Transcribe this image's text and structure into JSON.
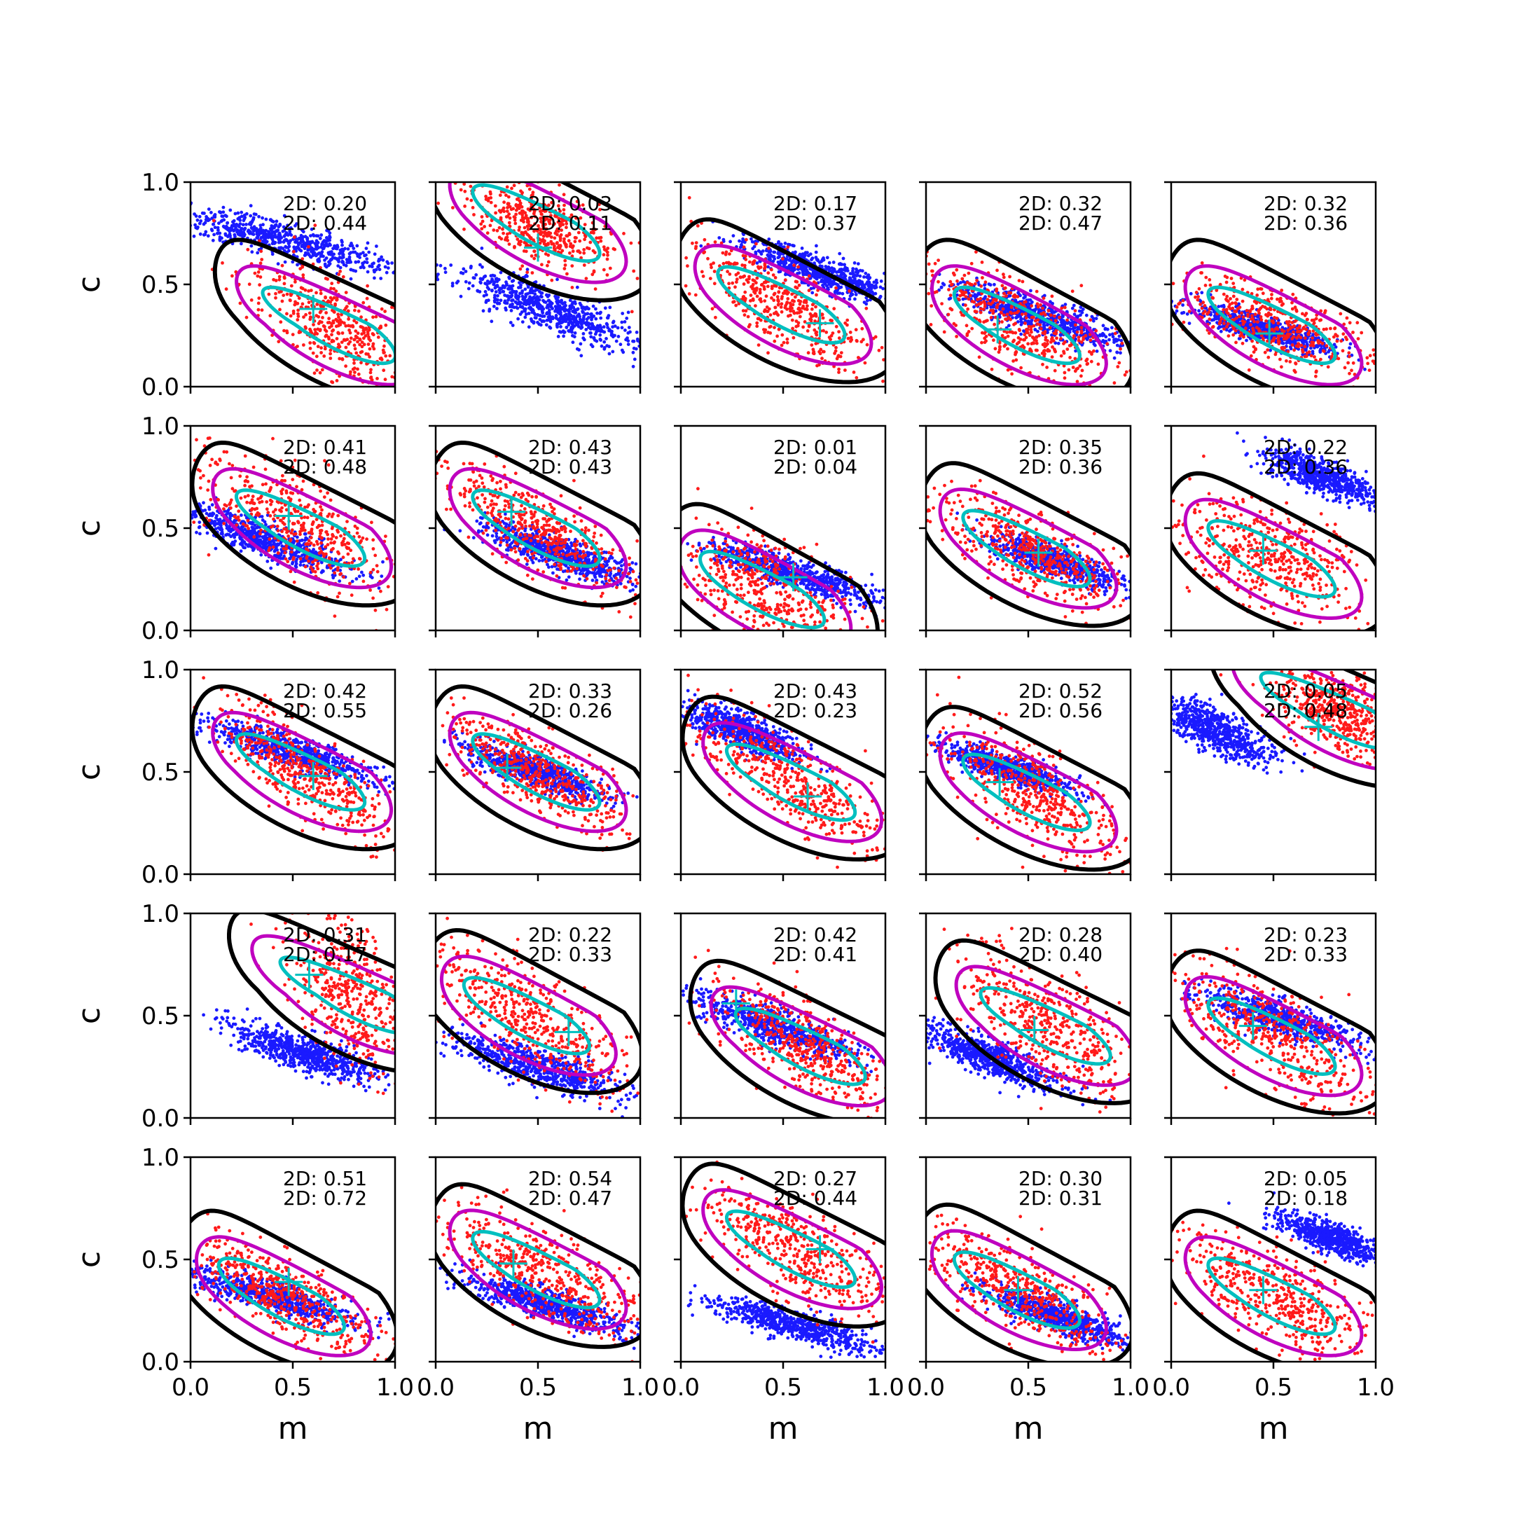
{
  "chart_data": {
    "type": "scatter",
    "rows": 5,
    "cols": 5,
    "xlabel": "m",
    "ylabel": "c",
    "xlim": [
      0,
      1
    ],
    "ylim": [
      0,
      1
    ],
    "xticks": [
      "0.0",
      "0.5",
      "1.0"
    ],
    "yticks": [
      "0.0",
      "0.5",
      "1.0"
    ],
    "colors": {
      "blue": "#1a1aff",
      "red": "#ff1a1a",
      "black": "#000000",
      "magenta": "#bf00bf",
      "cyan": "#00bfbf"
    },
    "panels": [
      {
        "stats": [
          "2D: 0.20",
          "2D: 0.44"
        ],
        "marker": [
          0.6,
          0.38
        ],
        "blue": {
          "cx": 0.45,
          "cy": 0.72,
          "sx": 0.28,
          "sy": 0.08,
          "rho": -0.85
        },
        "red": {
          "cx": 0.7,
          "cy": 0.3,
          "sx": 0.2,
          "sy": 0.15,
          "rho": -0.6
        }
      },
      {
        "stats": [
          "2D: 0.03",
          "2D: 0.11"
        ],
        "marker": [
          0.5,
          0.68
        ],
        "blue": {
          "cx": 0.55,
          "cy": 0.38,
          "sx": 0.22,
          "sy": 0.1,
          "rho": -0.85
        },
        "red": {
          "cx": 0.5,
          "cy": 0.8,
          "sx": 0.18,
          "sy": 0.12,
          "rho": -0.6
        }
      },
      {
        "stats": [
          "2D: 0.17",
          "2D: 0.37"
        ],
        "marker": [
          0.68,
          0.31
        ],
        "blue": {
          "cx": 0.7,
          "cy": 0.55,
          "sx": 0.2,
          "sy": 0.08,
          "rho": -0.85
        },
        "red": {
          "cx": 0.5,
          "cy": 0.4,
          "sx": 0.22,
          "sy": 0.16,
          "rho": -0.75
        }
      },
      {
        "stats": [
          "2D: 0.32",
          "2D: 0.47"
        ],
        "marker": [
          0.35,
          0.28
        ],
        "blue": {
          "cx": 0.55,
          "cy": 0.35,
          "sx": 0.22,
          "sy": 0.08,
          "rho": -0.85
        },
        "red": {
          "cx": 0.45,
          "cy": 0.3,
          "sx": 0.25,
          "sy": 0.15,
          "rho": -0.7
        }
      },
      {
        "stats": [
          "2D: 0.32",
          "2D: 0.36"
        ],
        "marker": [
          0.48,
          0.26
        ],
        "blue": {
          "cx": 0.45,
          "cy": 0.28,
          "sx": 0.18,
          "sy": 0.06,
          "rho": -0.85
        },
        "red": {
          "cx": 0.5,
          "cy": 0.3,
          "sx": 0.25,
          "sy": 0.12,
          "rho": -0.7
        }
      },
      {
        "stats": [
          "2D: 0.41",
          "2D: 0.48"
        ],
        "marker": [
          0.48,
          0.56
        ],
        "blue": {
          "cx": 0.35,
          "cy": 0.45,
          "sx": 0.2,
          "sy": 0.08,
          "rho": -0.85
        },
        "red": {
          "cx": 0.55,
          "cy": 0.5,
          "sx": 0.25,
          "sy": 0.18,
          "rho": -0.75
        }
      },
      {
        "stats": [
          "2D: 0.43",
          "2D: 0.43"
        ],
        "marker": [
          0.37,
          0.58
        ],
        "blue": {
          "cx": 0.6,
          "cy": 0.38,
          "sx": 0.2,
          "sy": 0.08,
          "rho": -0.85
        },
        "red": {
          "cx": 0.5,
          "cy": 0.5,
          "sx": 0.25,
          "sy": 0.18,
          "rho": -0.8
        }
      },
      {
        "stats": [
          "2D: 0.01",
          "2D: 0.04"
        ],
        "marker": [
          0.55,
          0.26
        ],
        "blue": {
          "cx": 0.55,
          "cy": 0.28,
          "sx": 0.2,
          "sy": 0.07,
          "rho": -0.85
        },
        "red": {
          "cx": 0.4,
          "cy": 0.2,
          "sx": 0.2,
          "sy": 0.15,
          "rho": -0.5
        }
      },
      {
        "stats": [
          "2D: 0.35",
          "2D: 0.36"
        ],
        "marker": [
          0.55,
          0.38
        ],
        "blue": {
          "cx": 0.65,
          "cy": 0.33,
          "sx": 0.18,
          "sy": 0.07,
          "rho": -0.85
        },
        "red": {
          "cx": 0.5,
          "cy": 0.4,
          "sx": 0.25,
          "sy": 0.15,
          "rho": -0.75
        }
      },
      {
        "stats": [
          "2D: 0.22",
          "2D: 0.36"
        ],
        "marker": [
          0.45,
          0.39
        ],
        "blue": {
          "cx": 0.75,
          "cy": 0.75,
          "sx": 0.15,
          "sy": 0.07,
          "rho": -0.8
        },
        "red": {
          "cx": 0.5,
          "cy": 0.35,
          "sx": 0.25,
          "sy": 0.15,
          "rho": -0.5
        }
      },
      {
        "stats": [
          "2D: 0.42",
          "2D: 0.55"
        ],
        "marker": [
          0.6,
          0.48
        ],
        "blue": {
          "cx": 0.5,
          "cy": 0.6,
          "sx": 0.2,
          "sy": 0.07,
          "rho": -0.85
        },
        "red": {
          "cx": 0.55,
          "cy": 0.5,
          "sx": 0.22,
          "sy": 0.16,
          "rho": -0.8
        }
      },
      {
        "stats": [
          "2D: 0.33",
          "2D: 0.26"
        ],
        "marker": [
          0.35,
          0.52
        ],
        "blue": {
          "cx": 0.5,
          "cy": 0.5,
          "sx": 0.18,
          "sy": 0.07,
          "rho": -0.85
        },
        "red": {
          "cx": 0.5,
          "cy": 0.5,
          "sx": 0.22,
          "sy": 0.14,
          "rho": -0.75
        }
      },
      {
        "stats": [
          "2D: 0.43",
          "2D: 0.23"
        ],
        "marker": [
          0.62,
          0.38
        ],
        "blue": {
          "cx": 0.3,
          "cy": 0.7,
          "sx": 0.14,
          "sy": 0.07,
          "rho": -0.8
        },
        "red": {
          "cx": 0.55,
          "cy": 0.45,
          "sx": 0.25,
          "sy": 0.18,
          "rho": -0.8
        }
      },
      {
        "stats": [
          "2D: 0.52",
          "2D: 0.56"
        ],
        "marker": [
          0.36,
          0.45
        ],
        "blue": {
          "cx": 0.4,
          "cy": 0.52,
          "sx": 0.16,
          "sy": 0.06,
          "rho": -0.85
        },
        "red": {
          "cx": 0.5,
          "cy": 0.4,
          "sx": 0.25,
          "sy": 0.18,
          "rho": -0.75
        }
      },
      {
        "stats": [
          "2D: 0.05",
          "2D: 0.48"
        ],
        "marker": [
          0.72,
          0.72
        ],
        "blue": {
          "cx": 0.22,
          "cy": 0.7,
          "sx": 0.14,
          "sy": 0.08,
          "rho": -0.75
        },
        "red": {
          "cx": 0.8,
          "cy": 0.8,
          "sx": 0.15,
          "sy": 0.12,
          "rho": -0.5
        }
      },
      {
        "stats": [
          "2D: 0.31",
          "2D: 0.17"
        ],
        "marker": [
          0.58,
          0.7
        ],
        "blue": {
          "cx": 0.55,
          "cy": 0.32,
          "sx": 0.18,
          "sy": 0.07,
          "rho": -0.8
        },
        "red": {
          "cx": 0.8,
          "cy": 0.6,
          "sx": 0.15,
          "sy": 0.2,
          "rho": -0.4
        }
      },
      {
        "stats": [
          "2D: 0.22",
          "2D: 0.33"
        ],
        "marker": [
          0.65,
          0.42
        ],
        "blue": {
          "cx": 0.5,
          "cy": 0.25,
          "sx": 0.22,
          "sy": 0.08,
          "rho": -0.85
        },
        "red": {
          "cx": 0.45,
          "cy": 0.5,
          "sx": 0.25,
          "sy": 0.18,
          "rho": -0.75
        }
      },
      {
        "stats": [
          "2D: 0.42",
          "2D: 0.41"
        ],
        "marker": [
          0.27,
          0.56
        ],
        "blue": {
          "cx": 0.45,
          "cy": 0.45,
          "sx": 0.2,
          "sy": 0.08,
          "rho": -0.85
        },
        "red": {
          "cx": 0.6,
          "cy": 0.35,
          "sx": 0.22,
          "sy": 0.16,
          "rho": -0.75
        }
      },
      {
        "stats": [
          "2D: 0.28",
          "2D: 0.40"
        ],
        "marker": [
          0.53,
          0.43
        ],
        "blue": {
          "cx": 0.3,
          "cy": 0.3,
          "sx": 0.18,
          "sy": 0.08,
          "rho": -0.85
        },
        "red": {
          "cx": 0.6,
          "cy": 0.45,
          "sx": 0.22,
          "sy": 0.18,
          "rho": -0.7
        }
      },
      {
        "stats": [
          "2D: 0.23",
          "2D: 0.33"
        ],
        "marker": [
          0.4,
          0.45
        ],
        "blue": {
          "cx": 0.55,
          "cy": 0.48,
          "sx": 0.2,
          "sy": 0.07,
          "rho": -0.85
        },
        "red": {
          "cx": 0.5,
          "cy": 0.4,
          "sx": 0.25,
          "sy": 0.18,
          "rho": -0.75
        }
      },
      {
        "stats": [
          "2D: 0.51",
          "2D: 0.72"
        ],
        "marker": [
          0.48,
          0.39
        ],
        "blue": {
          "cx": 0.4,
          "cy": 0.32,
          "sx": 0.2,
          "sy": 0.07,
          "rho": -0.85
        },
        "red": {
          "cx": 0.45,
          "cy": 0.32,
          "sx": 0.22,
          "sy": 0.14,
          "rho": -0.75
        }
      },
      {
        "stats": [
          "2D: 0.54",
          "2D: 0.47"
        ],
        "marker": [
          0.38,
          0.48
        ],
        "blue": {
          "cx": 0.55,
          "cy": 0.28,
          "sx": 0.2,
          "sy": 0.07,
          "rho": -0.85
        },
        "red": {
          "cx": 0.5,
          "cy": 0.45,
          "sx": 0.25,
          "sy": 0.16,
          "rho": -0.75
        }
      },
      {
        "stats": [
          "2D: 0.27",
          "2D: 0.44"
        ],
        "marker": [
          0.68,
          0.55
        ],
        "blue": {
          "cx": 0.55,
          "cy": 0.18,
          "sx": 0.22,
          "sy": 0.07,
          "rho": -0.85
        },
        "red": {
          "cx": 0.55,
          "cy": 0.55,
          "sx": 0.25,
          "sy": 0.16,
          "rho": -0.75
        }
      },
      {
        "stats": [
          "2D: 0.30",
          "2D: 0.31"
        ],
        "marker": [
          0.45,
          0.35
        ],
        "blue": {
          "cx": 0.65,
          "cy": 0.22,
          "sx": 0.18,
          "sy": 0.07,
          "rho": -0.85
        },
        "red": {
          "cx": 0.45,
          "cy": 0.35,
          "sx": 0.22,
          "sy": 0.15,
          "rho": -0.75
        }
      },
      {
        "stats": [
          "2D: 0.05",
          "2D: 0.18"
        ],
        "marker": [
          0.45,
          0.35
        ],
        "blue": {
          "cx": 0.8,
          "cy": 0.6,
          "sx": 0.14,
          "sy": 0.06,
          "rho": -0.8
        },
        "red": {
          "cx": 0.5,
          "cy": 0.32,
          "sx": 0.25,
          "sy": 0.16,
          "rho": -0.7
        }
      }
    ]
  }
}
